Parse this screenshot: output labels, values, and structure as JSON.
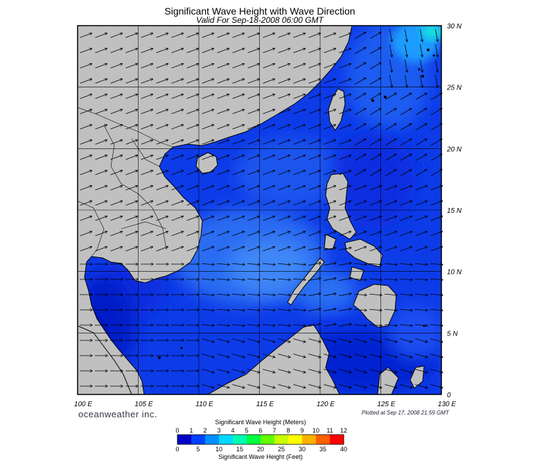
{
  "title": "Significant Wave Height with Wave Direction",
  "subtitle": "Valid For Sep-18-2008 06:00 GMT",
  "brand": "oceanweather inc.",
  "plotted": "Plotted at Sep 17, 2008 21:59 GMT",
  "longitude_labels": [
    "100 E",
    "105 E",
    "110 E",
    "115 E",
    "120 E",
    "125 E",
    "130 E"
  ],
  "latitude_labels": [
    "30 N",
    "25 N",
    "20 N",
    "15 N",
    "10 N",
    "5 N",
    "0"
  ],
  "colorbar": {
    "meters_title": "Significant Wave Height (Meters)",
    "meters_ticks": [
      "0",
      "1",
      "2",
      "3",
      "4",
      "5",
      "6",
      "7",
      "8",
      "9",
      "10",
      "11",
      "12"
    ],
    "feet_title": "Significant Wave Height (Feet)",
    "feet_ticks": [
      "0",
      "5",
      "10",
      "15",
      "20",
      "25",
      "30",
      "35",
      "40"
    ],
    "colors": [
      "#0000c8",
      "#0040ff",
      "#0090ff",
      "#00d8ff",
      "#00ffb0",
      "#00ff40",
      "#60ff00",
      "#c8ff00",
      "#ffff00",
      "#ffb000",
      "#ff6000",
      "#ff0000"
    ]
  },
  "colors": {
    "land": "#c0c0c0",
    "deep_sea": "#0000c0",
    "sea": "#1040e8",
    "high_sea": "#3a80f0",
    "frame": "#000000"
  }
}
